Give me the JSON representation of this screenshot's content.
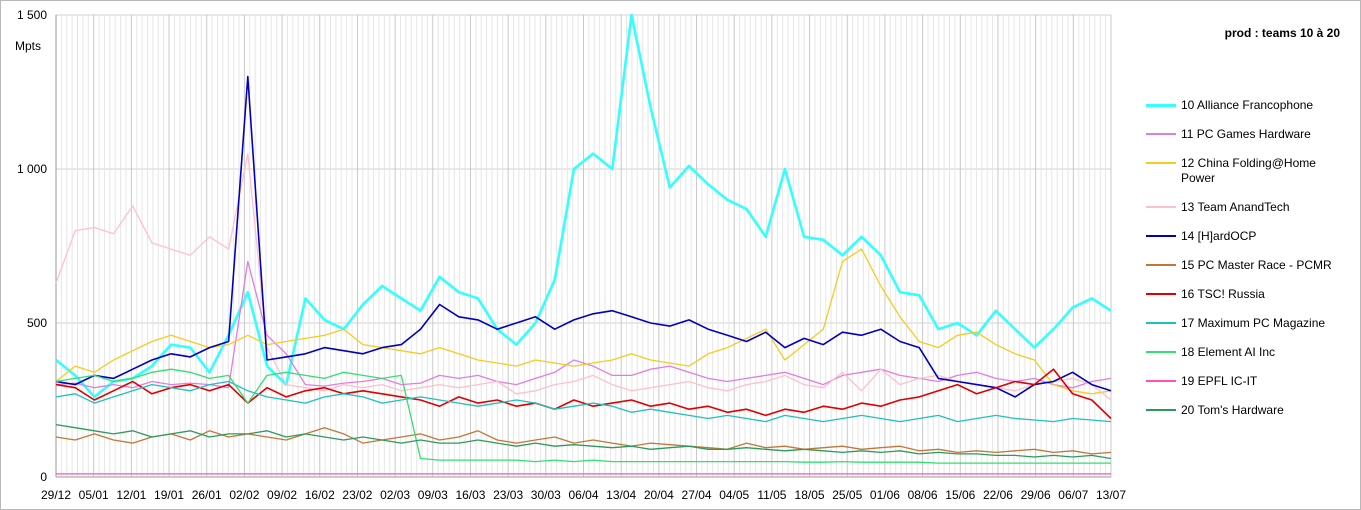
{
  "chart_data": {
    "type": "line",
    "title": "prod : teams 10 à 20",
    "ylabel": "Mpts",
    "xlabel": "",
    "ylim": [
      0,
      1500
    ],
    "yticks": [
      0,
      500,
      1000,
      1500
    ],
    "ytick_labels": [
      "0",
      "500",
      "1 000",
      "1 500"
    ],
    "xtick_labels": [
      "29/12",
      "05/01",
      "12/01",
      "19/01",
      "26/01",
      "02/02",
      "09/02",
      "16/02",
      "23/02",
      "02/03",
      "09/03",
      "16/03",
      "23/03",
      "30/03",
      "06/04",
      "13/04",
      "20/04",
      "27/04",
      "04/05",
      "11/05",
      "18/05",
      "25/05",
      "01/06",
      "08/06",
      "15/06",
      "22/06",
      "29/06",
      "06/07",
      "13/07"
    ],
    "grid": true,
    "legend_position": "right",
    "series": [
      {
        "name": "10 Alliance Francophone",
        "color": "#33ffff",
        "width": 2.6,
        "values": [
          380,
          330,
          260,
          310,
          320,
          360,
          430,
          420,
          340,
          460,
          600,
          360,
          300,
          580,
          510,
          480,
          560,
          620,
          580,
          540,
          650,
          600,
          580,
          480,
          430,
          500,
          640,
          1000,
          1050,
          1000,
          1500,
          1200,
          940,
          1010,
          950,
          900,
          870,
          780,
          1000,
          780,
          770,
          720,
          780,
          720,
          600,
          590,
          480,
          500,
          460,
          540,
          480,
          420,
          480,
          550,
          580,
          540
        ]
      },
      {
        "name": "11 PC Games Hardware",
        "color": "#e07ee0",
        "width": 1.3,
        "values": [
          300,
          305,
          290,
          300,
          290,
          310,
          300,
          305,
          300,
          290,
          700,
          460,
          400,
          300,
          295,
          305,
          310,
          320,
          300,
          305,
          330,
          320,
          330,
          310,
          300,
          320,
          340,
          380,
          360,
          330,
          330,
          350,
          360,
          340,
          320,
          310,
          320,
          330,
          340,
          320,
          300,
          330,
          340,
          350,
          330,
          320,
          310,
          330,
          340,
          320,
          310,
          320,
          300,
          290,
          310,
          320
        ]
      },
      {
        "name": "12 China Folding@Home Power",
        "color": "#f5cc1e",
        "width": 1.3,
        "values": [
          310,
          360,
          340,
          380,
          410,
          440,
          460,
          440,
          420,
          430,
          460,
          430,
          440,
          450,
          460,
          480,
          430,
          420,
          410,
          400,
          420,
          400,
          380,
          370,
          360,
          380,
          370,
          360,
          370,
          380,
          400,
          380,
          370,
          360,
          400,
          420,
          450,
          480,
          380,
          430,
          480,
          700,
          740,
          620,
          520,
          440,
          420,
          460,
          470,
          430,
          400,
          380,
          300,
          280,
          270,
          280
        ]
      },
      {
        "name": "13 Team AnandTech",
        "color": "#ffc0cb",
        "width": 1.3,
        "values": [
          630,
          800,
          810,
          790,
          880,
          760,
          740,
          720,
          780,
          740,
          1050,
          420,
          300,
          290,
          280,
          300,
          290,
          300,
          280,
          290,
          300,
          290,
          300,
          310,
          270,
          280,
          300,
          310,
          330,
          300,
          280,
          290,
          300,
          310,
          290,
          280,
          300,
          310,
          330,
          300,
          290,
          340,
          280,
          350,
          300,
          320,
          330,
          310,
          300,
          290,
          280,
          300,
          310,
          320,
          300,
          250
        ]
      },
      {
        "name": "14 [H]ardOCP",
        "color": "#0000c0",
        "width": 1.6,
        "values": [
          310,
          300,
          330,
          320,
          350,
          380,
          400,
          390,
          420,
          440,
          1300,
          380,
          390,
          400,
          420,
          410,
          400,
          420,
          430,
          480,
          560,
          520,
          510,
          480,
          500,
          520,
          480,
          510,
          530,
          540,
          520,
          500,
          490,
          510,
          480,
          460,
          440,
          470,
          420,
          450,
          430,
          470,
          460,
          480,
          440,
          420,
          320,
          310,
          300,
          290,
          260,
          300,
          310,
          340,
          300,
          280
        ]
      },
      {
        "name": "15 PC Master Race - PCMR",
        "color": "#c07838",
        "width": 1.3,
        "values": [
          130,
          120,
          140,
          120,
          110,
          130,
          140,
          120,
          150,
          130,
          140,
          130,
          120,
          140,
          160,
          140,
          110,
          120,
          130,
          140,
          120,
          130,
          150,
          120,
          110,
          120,
          130,
          110,
          120,
          110,
          100,
          110,
          105,
          100,
          95,
          90,
          110,
          95,
          100,
          90,
          95,
          100,
          90,
          95,
          100,
          85,
          90,
          80,
          85,
          80,
          85,
          90,
          80,
          85,
          75,
          80
        ]
      },
      {
        "name": "16 TSC! Russia",
        "color": "#e00000",
        "width": 1.6,
        "values": [
          300,
          290,
          250,
          280,
          310,
          270,
          290,
          300,
          280,
          300,
          240,
          290,
          260,
          280,
          290,
          270,
          280,
          270,
          260,
          250,
          230,
          260,
          240,
          250,
          230,
          240,
          220,
          250,
          230,
          240,
          250,
          230,
          240,
          220,
          230,
          210,
          220,
          200,
          220,
          210,
          230,
          220,
          240,
          230,
          250,
          260,
          280,
          300,
          270,
          290,
          310,
          300,
          350,
          270,
          250,
          190
        ]
      },
      {
        "name": "17 Maximum PC Magazine",
        "color": "#20c0c0",
        "width": 1.3,
        "values": [
          260,
          270,
          240,
          260,
          280,
          300,
          290,
          280,
          300,
          310,
          280,
          260,
          250,
          240,
          260,
          270,
          260,
          240,
          250,
          260,
          250,
          240,
          230,
          240,
          250,
          240,
          220,
          230,
          240,
          230,
          210,
          220,
          210,
          200,
          190,
          200,
          190,
          180,
          200,
          190,
          180,
          190,
          200,
          190,
          180,
          190,
          200,
          180,
          190,
          200,
          190,
          185,
          180,
          190,
          185,
          180
        ]
      },
      {
        "name": "18 Element AI Inc",
        "color": "#30e070",
        "width": 1.3,
        "values": [
          310,
          320,
          330,
          310,
          320,
          340,
          350,
          340,
          320,
          330,
          240,
          330,
          340,
          330,
          320,
          340,
          330,
          320,
          330,
          60,
          55,
          55,
          55,
          55,
          55,
          50,
          55,
          50,
          55,
          50,
          50,
          50,
          50,
          50,
          50,
          50,
          50,
          50,
          50,
          48,
          48,
          50,
          48,
          48,
          48,
          48,
          45,
          45,
          45,
          45,
          45,
          45,
          45,
          45,
          45,
          45
        ]
      },
      {
        "name": "19 EPFL IC-IT",
        "color": "#ff50c0",
        "width": 1.3,
        "values": [
          10,
          10,
          10,
          10,
          10,
          10,
          10,
          10,
          10,
          10,
          10,
          10,
          10,
          10,
          10,
          10,
          10,
          10,
          10,
          10,
          10,
          10,
          10,
          10,
          10,
          10,
          10,
          10,
          10,
          10,
          10,
          10,
          10,
          10,
          10,
          10,
          10,
          10,
          10,
          10,
          10,
          10,
          10,
          10,
          10,
          10,
          10,
          10,
          10,
          10,
          10,
          10,
          10,
          10,
          10,
          10
        ]
      },
      {
        "name": "20 Tom's Hardware",
        "color": "#2e9a5a",
        "width": 1.3,
        "values": [
          170,
          160,
          150,
          140,
          150,
          130,
          140,
          150,
          130,
          140,
          140,
          150,
          130,
          140,
          130,
          120,
          130,
          120,
          110,
          120,
          110,
          110,
          120,
          110,
          100,
          110,
          100,
          105,
          100,
          95,
          100,
          90,
          95,
          100,
          90,
          90,
          95,
          90,
          85,
          90,
          85,
          80,
          85,
          80,
          85,
          75,
          80,
          75,
          75,
          70,
          70,
          65,
          70,
          65,
          70,
          60
        ]
      }
    ]
  }
}
